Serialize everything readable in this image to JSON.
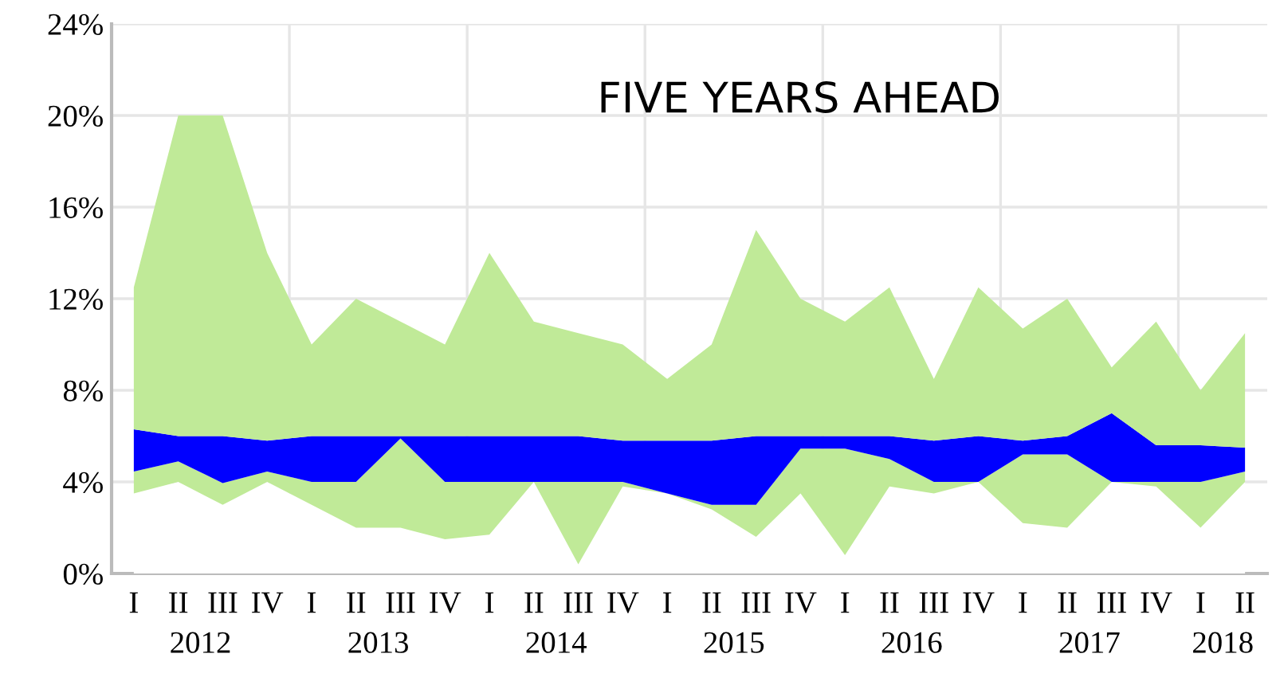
{
  "chart_data": {
    "type": "area",
    "title": "FIVE YEARS AHEAD",
    "stacked": true,
    "categories": [
      "I",
      "II",
      "III",
      "IV",
      "I",
      "II",
      "III",
      "IV",
      "I",
      "II",
      "III",
      "IV",
      "I",
      "II",
      "III",
      "IV",
      "I",
      "II",
      "III",
      "IV",
      "I",
      "II",
      "III",
      "IV",
      "I",
      "II"
    ],
    "series": [
      {
        "color": "#ffffff",
        "values": [
          3.5,
          4.0,
          3.0,
          4.0,
          3.0,
          2.0,
          2.0,
          1.5,
          1.7,
          4.0,
          0.4,
          3.8,
          3.5,
          2.8,
          1.6,
          3.5,
          0.8,
          3.8,
          3.5,
          4.0,
          2.2,
          2.0,
          4.0,
          3.8,
          2.0,
          4.0
        ]
      },
      {
        "color": "#c0ea98",
        "values": [
          0.95,
          0.9,
          0.95,
          0.45,
          1.0,
          2.0,
          3.9,
          2.5,
          2.3,
          0.0,
          3.6,
          0.2,
          0.0,
          0.2,
          1.4,
          1.95,
          4.65,
          1.2,
          0.5,
          0.0,
          3.0,
          3.2,
          0.0,
          0.2,
          2.0,
          0.45
        ]
      },
      {
        "color": "#0000ff",
        "values": [
          1.85,
          1.1,
          2.05,
          1.35,
          2.0,
          2.0,
          0.1,
          2.0,
          2.0,
          2.0,
          2.0,
          1.8,
          2.3,
          2.8,
          3.0,
          0.55,
          0.55,
          1.0,
          1.8,
          2.0,
          0.6,
          0.8,
          3.0,
          1.6,
          1.6,
          1.05
        ]
      },
      {
        "color": "#c0ea98",
        "values": [
          6.2,
          14.0,
          14.0,
          8.2,
          4.0,
          6.0,
          5.0,
          4.0,
          8.0,
          5.0,
          4.5,
          4.2,
          2.7,
          4.2,
          9.0,
          6.0,
          5.0,
          6.5,
          2.7,
          6.5,
          4.9,
          6.0,
          2.0,
          5.4,
          2.4,
          5.0
        ]
      }
    ],
    "annotations": [
      "2012",
      "2013",
      "2014",
      "2015",
      "2016",
      "2017",
      "2018"
    ],
    "ylim": [
      0,
      24
    ],
    "yticks": [
      {
        "value": 0,
        "label": "0%"
      },
      {
        "value": 4,
        "label": "4%"
      },
      {
        "value": 8,
        "label": "8%"
      },
      {
        "value": 12,
        "label": "12%"
      },
      {
        "value": 16,
        "label": "16%"
      },
      {
        "value": 20,
        "label": "20%"
      },
      {
        "value": 24,
        "label": "24%"
      }
    ],
    "grid": "y"
  }
}
